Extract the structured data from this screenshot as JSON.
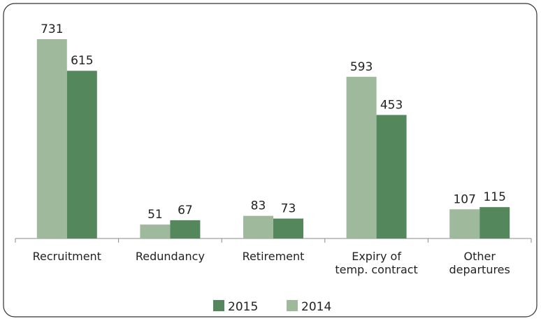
{
  "chart_data": {
    "type": "bar",
    "categories": [
      "Recruitment",
      "Redundancy",
      "Retirement",
      "Expiry of\ntemp. contract",
      "Other\ndepartures"
    ],
    "series": [
      {
        "name": "2014",
        "color": "#9fb99c",
        "values": [
          731,
          51,
          83,
          593,
          107
        ]
      },
      {
        "name": "2015",
        "color": "#55875c",
        "values": [
          615,
          67,
          73,
          453,
          115
        ]
      }
    ]
  }
}
